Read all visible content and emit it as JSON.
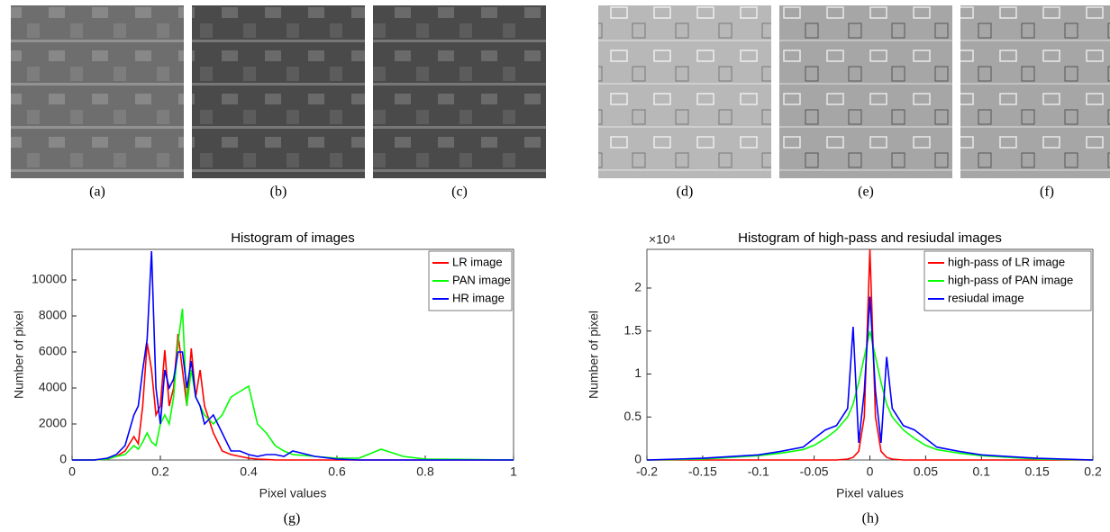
{
  "captions": [
    "(a)",
    "(b)",
    "(c)",
    "(d)",
    "(e)",
    "(f)"
  ],
  "chart_captions": [
    "(g)",
    "(h)"
  ],
  "chart_data": [
    {
      "type": "line",
      "title": "Histogram of images",
      "x_label": "Pixel values",
      "y_label": "Number of pixel",
      "x": [
        0,
        0.05,
        0.08,
        0.1,
        0.12,
        0.14,
        0.15,
        0.16,
        0.17,
        0.18,
        0.19,
        0.2,
        0.21,
        0.22,
        0.23,
        0.24,
        0.25,
        0.26,
        0.27,
        0.28,
        0.29,
        0.3,
        0.32,
        0.34,
        0.36,
        0.38,
        0.4,
        0.42,
        0.44,
        0.46,
        0.48,
        0.5,
        0.55,
        0.6,
        0.65,
        0.7,
        0.75,
        0.8,
        0.9,
        1.0
      ],
      "series": [
        {
          "name": "LR image",
          "color": "#ff0000",
          "values": [
            0,
            0,
            50,
            200,
            500,
            1300,
            900,
            3000,
            6500,
            5000,
            2500,
            3000,
            6100,
            3000,
            4000,
            7000,
            5000,
            3000,
            6200,
            3500,
            5000,
            3000,
            1500,
            500,
            300,
            200,
            100,
            50,
            30,
            0,
            0,
            0,
            0,
            0,
            0,
            0,
            0,
            0,
            0,
            0
          ]
        },
        {
          "name": "PAN image",
          "color": "#00ff00",
          "values": [
            0,
            0,
            50,
            200,
            300,
            800,
            600,
            1000,
            1500,
            1000,
            800,
            2000,
            2500,
            2000,
            3500,
            6500,
            8400,
            3000,
            5000,
            3500,
            3000,
            2500,
            2000,
            2500,
            3500,
            3800,
            4100,
            2000,
            1500,
            800,
            500,
            300,
            200,
            100,
            100,
            600,
            200,
            50,
            30,
            0
          ]
        },
        {
          "name": "HR image",
          "color": "#0000ff",
          "values": [
            0,
            0,
            100,
            300,
            800,
            2500,
            3000,
            5000,
            6700,
            11600,
            4000,
            2000,
            5000,
            4000,
            4500,
            6000,
            6000,
            4000,
            5500,
            3500,
            3000,
            2000,
            2500,
            1500,
            500,
            500,
            300,
            200,
            300,
            300,
            200,
            500,
            200,
            50,
            0,
            0,
            0,
            0,
            0,
            0
          ]
        }
      ],
      "xlim": [
        0,
        1
      ],
      "xticks": [
        0,
        0.2,
        0.4,
        0.6,
        0.8,
        1
      ],
      "ylim": [
        0,
        11700
      ],
      "yticks": [
        0,
        2000,
        4000,
        6000,
        8000,
        10000
      ],
      "legend": "top-right"
    },
    {
      "type": "line",
      "title": "Histogram of high-pass and resiudal images",
      "x_label": "Pixel values",
      "y_label": "Number of pixel",
      "y_multiplier": "×10⁴",
      "x": [
        -0.2,
        -0.15,
        -0.1,
        -0.08,
        -0.06,
        -0.05,
        -0.04,
        -0.03,
        -0.02,
        -0.015,
        -0.01,
        -0.005,
        0,
        0.005,
        0.01,
        0.015,
        0.02,
        0.03,
        0.04,
        0.05,
        0.06,
        0.08,
        0.1,
        0.15,
        0.2
      ],
      "series": [
        {
          "name": "high-pass of LR image",
          "color": "#ff0000",
          "values": [
            0,
            0,
            0,
            0,
            0,
            0,
            0,
            0,
            100,
            300,
            1000,
            5000,
            24500,
            5000,
            1000,
            300,
            100,
            0,
            0,
            0,
            0,
            0,
            0,
            0,
            0
          ]
        },
        {
          "name": "high-pass of PAN image",
          "color": "#00ff00",
          "values": [
            0,
            100,
            500,
            800,
            1200,
            1700,
            2500,
            3500,
            5000,
            6500,
            9000,
            12000,
            15000,
            12000,
            9000,
            6500,
            5000,
            3500,
            2500,
            1700,
            1200,
            800,
            500,
            100,
            0
          ]
        },
        {
          "name": "resiudal image",
          "color": "#0000ff",
          "values": [
            0,
            200,
            600,
            1000,
            1500,
            2500,
            3500,
            4000,
            6000,
            15500,
            2000,
            8000,
            19000,
            8000,
            2000,
            12000,
            6000,
            4000,
            3500,
            2500,
            1500,
            1000,
            600,
            200,
            0
          ]
        }
      ],
      "xlim": [
        -0.2,
        0.2
      ],
      "xticks": [
        -0.2,
        -0.15,
        -0.1,
        -0.05,
        0,
        0.05,
        0.1,
        0.15,
        0.2
      ],
      "ylim": [
        0,
        24500
      ],
      "yticks": [
        0,
        {
          "value": 5000,
          "label": "0.5"
        },
        {
          "value": 10000,
          "label": "1"
        },
        {
          "value": 15000,
          "label": "1.5"
        },
        {
          "value": 20000,
          "label": "2"
        }
      ],
      "legend": "top-right"
    }
  ]
}
